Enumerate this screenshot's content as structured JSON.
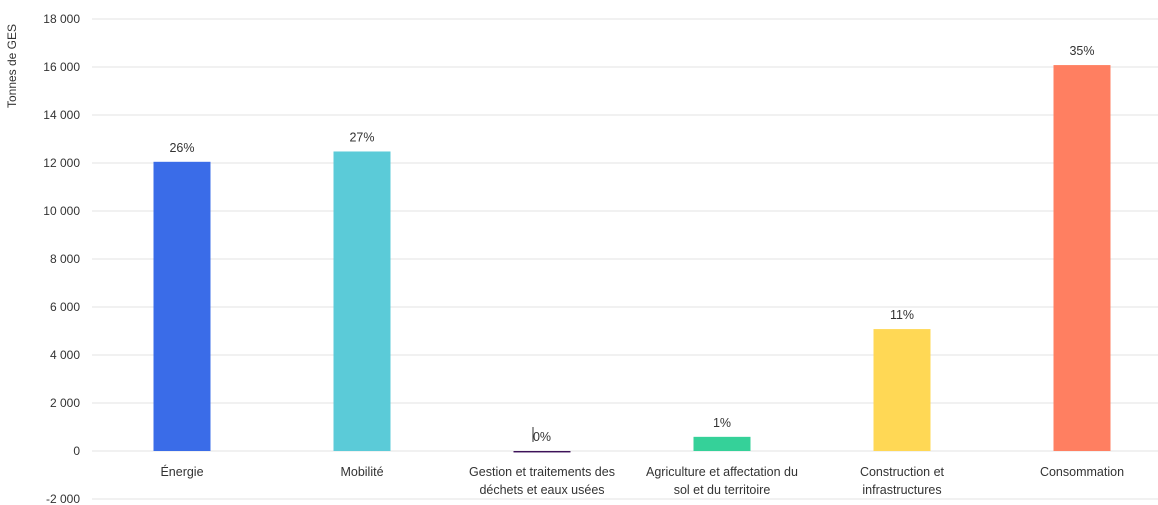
{
  "chart_data": {
    "type": "bar",
    "ylabel": "Tonnes de GES",
    "ylim": [
      -2000,
      18000
    ],
    "yticks": [
      -2000,
      0,
      2000,
      4000,
      6000,
      8000,
      10000,
      12000,
      14000,
      16000,
      18000
    ],
    "ytick_labels": [
      "-2 000",
      "0",
      "2 000",
      "4 000",
      "6 000",
      "8 000",
      "10 000",
      "12 000",
      "14 000",
      "16 000",
      "18 000"
    ],
    "grid": true,
    "categories": [
      [
        "Énergie"
      ],
      [
        "Mobilité"
      ],
      [
        "Gestion et traitements des",
        "déchets et eaux usées"
      ],
      [
        "Agriculture et affectation du",
        "sol et du territoire"
      ],
      [
        "Construction et",
        "infrastructures"
      ],
      [
        "Consommation"
      ]
    ],
    "values": [
      12050,
      12480,
      -60,
      590,
      5080,
      16080
    ],
    "data_labels": [
      "26%",
      "27%",
      "0%",
      "1%",
      "11%",
      "35%"
    ],
    "colors": [
      "#3a6ce8",
      "#5bcbd8",
      "#3d1259",
      "#35d199",
      "#ffd855",
      "#ff7f61"
    ]
  }
}
